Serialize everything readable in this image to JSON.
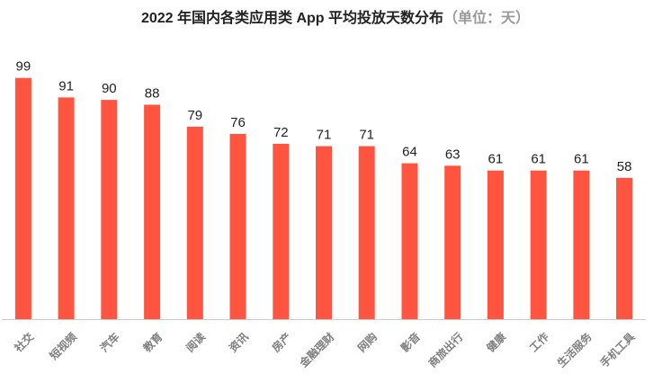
{
  "chart_data": {
    "type": "bar",
    "title": "2022 年国内各类应用类 App 平均投放天数分布",
    "title_unit": "（单位：天）",
    "xlabel": "",
    "ylabel": "",
    "ylim": [
      0,
      100
    ],
    "grid": false,
    "legend": "none",
    "categories": [
      "社交",
      "短视频",
      "汽车",
      "教育",
      "阅读",
      "资讯",
      "房产",
      "金融理财",
      "网购",
      "影音",
      "商旅出行",
      "健康",
      "工作",
      "生活服务",
      "手机工具"
    ],
    "values": [
      99,
      91,
      90,
      88,
      79,
      76,
      72,
      71,
      71,
      64,
      63,
      61,
      61,
      61,
      58
    ],
    "data_labels": true
  },
  "colors": {
    "bar": "#FF5540",
    "axis": "#cccccc",
    "label": "#222222",
    "category_label": "#7f7f7f",
    "title_unit": "#9a9a9a"
  }
}
